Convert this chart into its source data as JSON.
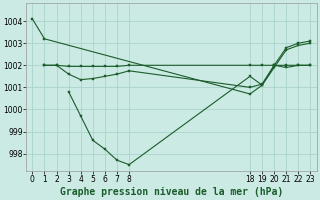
{
  "background_color": "#cceae4",
  "grid_color": "#aad4cc",
  "line_color": "#1a5c2a",
  "marker_color": "#1a5c2a",
  "title": "Graphe pression niveau de la mer (hPa)",
  "title_fontsize": 7,
  "series": [
    {
      "x": [
        0,
        1,
        18,
        19,
        20,
        21,
        22,
        23
      ],
      "y": [
        1004.1,
        1003.2,
        1000.7,
        1001.1,
        1002.0,
        1002.8,
        1003.0,
        1003.1
      ]
    },
    {
      "x": [
        1,
        2,
        3,
        4,
        5,
        6,
        7,
        8,
        18,
        19,
        20,
        21,
        22,
        23
      ],
      "y": [
        1002.0,
        1002.0,
        1001.95,
        1001.95,
        1001.95,
        1001.95,
        1001.95,
        1002.0,
        1002.0,
        1002.0,
        1002.0,
        1002.0,
        1002.0,
        1002.0
      ]
    },
    {
      "x": [
        3,
        4,
        5,
        6,
        7,
        8,
        18,
        19,
        20,
        21,
        22,
        23
      ],
      "y": [
        1000.8,
        999.7,
        998.6,
        998.2,
        997.7,
        997.5,
        1001.5,
        1001.1,
        1001.9,
        1002.7,
        1002.9,
        1003.0
      ]
    },
    {
      "x": [
        1,
        2,
        3,
        4,
        5,
        6,
        7,
        8,
        18,
        19,
        20,
        21,
        22,
        23
      ],
      "y": [
        1002.0,
        1002.0,
        1001.6,
        1001.35,
        1001.4,
        1001.5,
        1001.6,
        1001.75,
        1001.0,
        1001.15,
        1002.0,
        1001.9,
        1002.0,
        1002.0
      ]
    }
  ],
  "xlim": [
    -0.5,
    23.5
  ],
  "ylim": [
    997.2,
    1004.8
  ],
  "xtick_positions": [
    0,
    1,
    2,
    3,
    4,
    5,
    6,
    7,
    8,
    18,
    19,
    20,
    21,
    22,
    23
  ],
  "xtick_labels": [
    "0",
    "1",
    "2",
    "3",
    "4",
    "5",
    "6",
    "7",
    "8",
    "18",
    "19",
    "20",
    "21",
    "22",
    "23"
  ],
  "yticks": [
    998,
    999,
    1000,
    1001,
    1002,
    1003,
    1004
  ],
  "ytick_labels": [
    "998",
    "999",
    "1000",
    "1001",
    "1002",
    "1003",
    "1004"
  ],
  "ytick_fontsize": 5.5,
  "xtick_fontsize": 5.5
}
